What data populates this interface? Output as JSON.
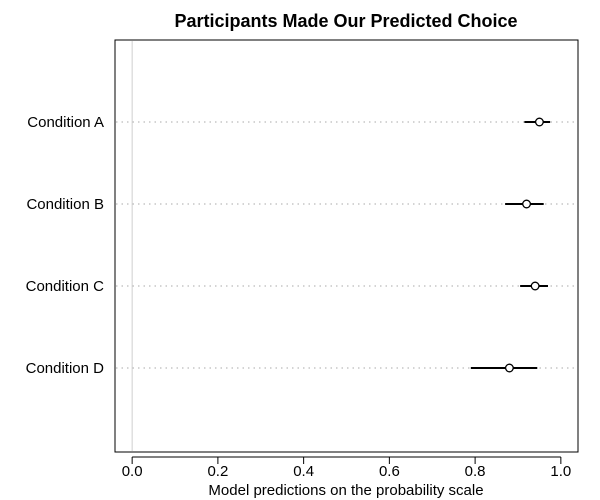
{
  "chart_data": {
    "type": "dot-whisker",
    "title": "Participants Made Our Predicted Choice",
    "xlabel": "Model predictions on the probability scale",
    "ylabel": "",
    "xlim": [
      -0.04,
      1.04
    ],
    "xticks": [
      0.0,
      0.2,
      0.4,
      0.6,
      0.8,
      1.0
    ],
    "xtick_labels": [
      "0.0",
      "0.2",
      "0.4",
      "0.6",
      "0.8",
      "1.0"
    ],
    "reference_line": 0,
    "categories": [
      "Condition A",
      "Condition B",
      "Condition C",
      "Condition D"
    ],
    "estimates": [
      0.95,
      0.92,
      0.94,
      0.88
    ],
    "lower": [
      0.915,
      0.87,
      0.905,
      0.79
    ],
    "upper": [
      0.975,
      0.96,
      0.97,
      0.945
    ],
    "grid": "dotted horizontal at each category",
    "colors": {
      "line": "#000000",
      "gridline": "#bbbbbb",
      "reference": "#d0d0d0"
    }
  }
}
